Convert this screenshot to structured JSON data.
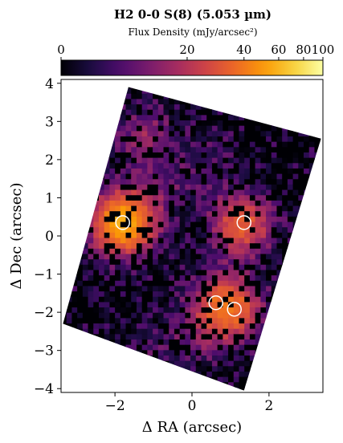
{
  "chart_data": {
    "type": "heatmap",
    "title": "H2 0-0 S(8) (5.053 µm)",
    "colorbar": {
      "label": "Flux Density (mJy/arcsec²)",
      "ticks": [
        "0",
        "20",
        "40",
        "60",
        "80",
        "100"
      ],
      "tick_values": [
        0,
        20,
        40,
        60,
        80,
        100
      ],
      "scale": "asinh",
      "range": [
        0,
        100
      ],
      "colormap": "inferno",
      "stops": [
        "#000004",
        "#1b0c41",
        "#4a0c6b",
        "#781c6d",
        "#a52c60",
        "#cf4446",
        "#ed6925",
        "#fb9b06",
        "#f7d13d",
        "#fcffa4"
      ],
      "placement": "top"
    },
    "xlabel": "Δ RA (arcsec)",
    "ylabel": "Δ Dec (arcsec)",
    "xlim": [
      -3.4,
      3.4
    ],
    "ylim": [
      -4.1,
      4.1
    ],
    "xticks": [
      -2,
      0,
      2
    ],
    "yticks": [
      -4,
      -3,
      -2,
      -1,
      0,
      1,
      2,
      3,
      4
    ],
    "xtick_labels": [
      "−2",
      "0",
      "2"
    ],
    "ytick_labels": [
      "−4",
      "−3",
      "−2",
      "−1",
      "0",
      "1",
      "2",
      "3",
      "4"
    ],
    "footprint_corners": [
      [
        -1.65,
        3.9
      ],
      [
        3.35,
        2.55
      ],
      [
        1.35,
        -4.05
      ],
      [
        -3.35,
        -2.3
      ]
    ],
    "map_regions": [
      {
        "x": -1.2,
        "y": 2.6,
        "flux": 12
      },
      {
        "x": -1.0,
        "y": 1.2,
        "flux": 8
      },
      {
        "x": 0.4,
        "y": 1.8,
        "flux": 6
      },
      {
        "x": 1.3,
        "y": 0.3,
        "flux": 30
      },
      {
        "x": -1.8,
        "y": 0.35,
        "flux": 55
      },
      {
        "x": 0.7,
        "y": -1.7,
        "flux": 18
      },
      {
        "x": 1.1,
        "y": -1.9,
        "flux": 22
      },
      {
        "x": 0.5,
        "y": -2.5,
        "flux": 9
      },
      {
        "x": -0.8,
        "y": -2.8,
        "flux": 5
      }
    ],
    "markers": [
      {
        "x": -1.8,
        "y": 0.35
      },
      {
        "x": 1.35,
        "y": 0.35
      },
      {
        "x": 0.62,
        "y": -1.75
      },
      {
        "x": 1.1,
        "y": -1.92
      }
    ],
    "grid": false
  }
}
